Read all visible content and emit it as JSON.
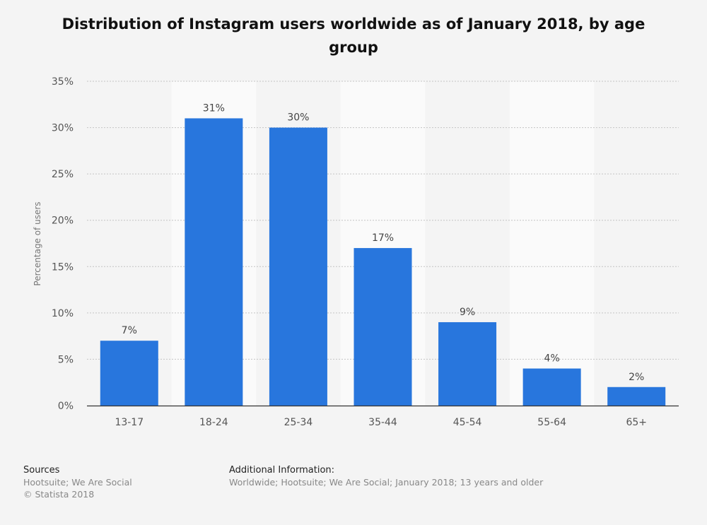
{
  "chart_data": {
    "type": "bar",
    "title": "Distribution of Instagram users worldwide as of January 2018, by age group",
    "xlabel": "",
    "ylabel": "Percentage of users",
    "categories": [
      "13-17",
      "18-24",
      "25-34",
      "35-44",
      "45-54",
      "55-64",
      "65+"
    ],
    "values": [
      7,
      31,
      30,
      17,
      9,
      4,
      2
    ],
    "data_labels": [
      "7%",
      "31%",
      "30%",
      "17%",
      "9%",
      "4%",
      "2%"
    ],
    "ylim": [
      0,
      35
    ],
    "yticks": [
      "0%",
      "5%",
      "10%",
      "15%",
      "20%",
      "25%",
      "30%",
      "35%"
    ],
    "grid": true,
    "bar_color": "#2876dd"
  },
  "footer": {
    "sources_label": "Sources",
    "sources": "Hootsuite; We Are Social",
    "copyright": "© Statista 2018",
    "additional_label": "Additional Information:",
    "additional": "Worldwide; Hootsuite; We Are Social; January 2018; 13 years and older"
  }
}
